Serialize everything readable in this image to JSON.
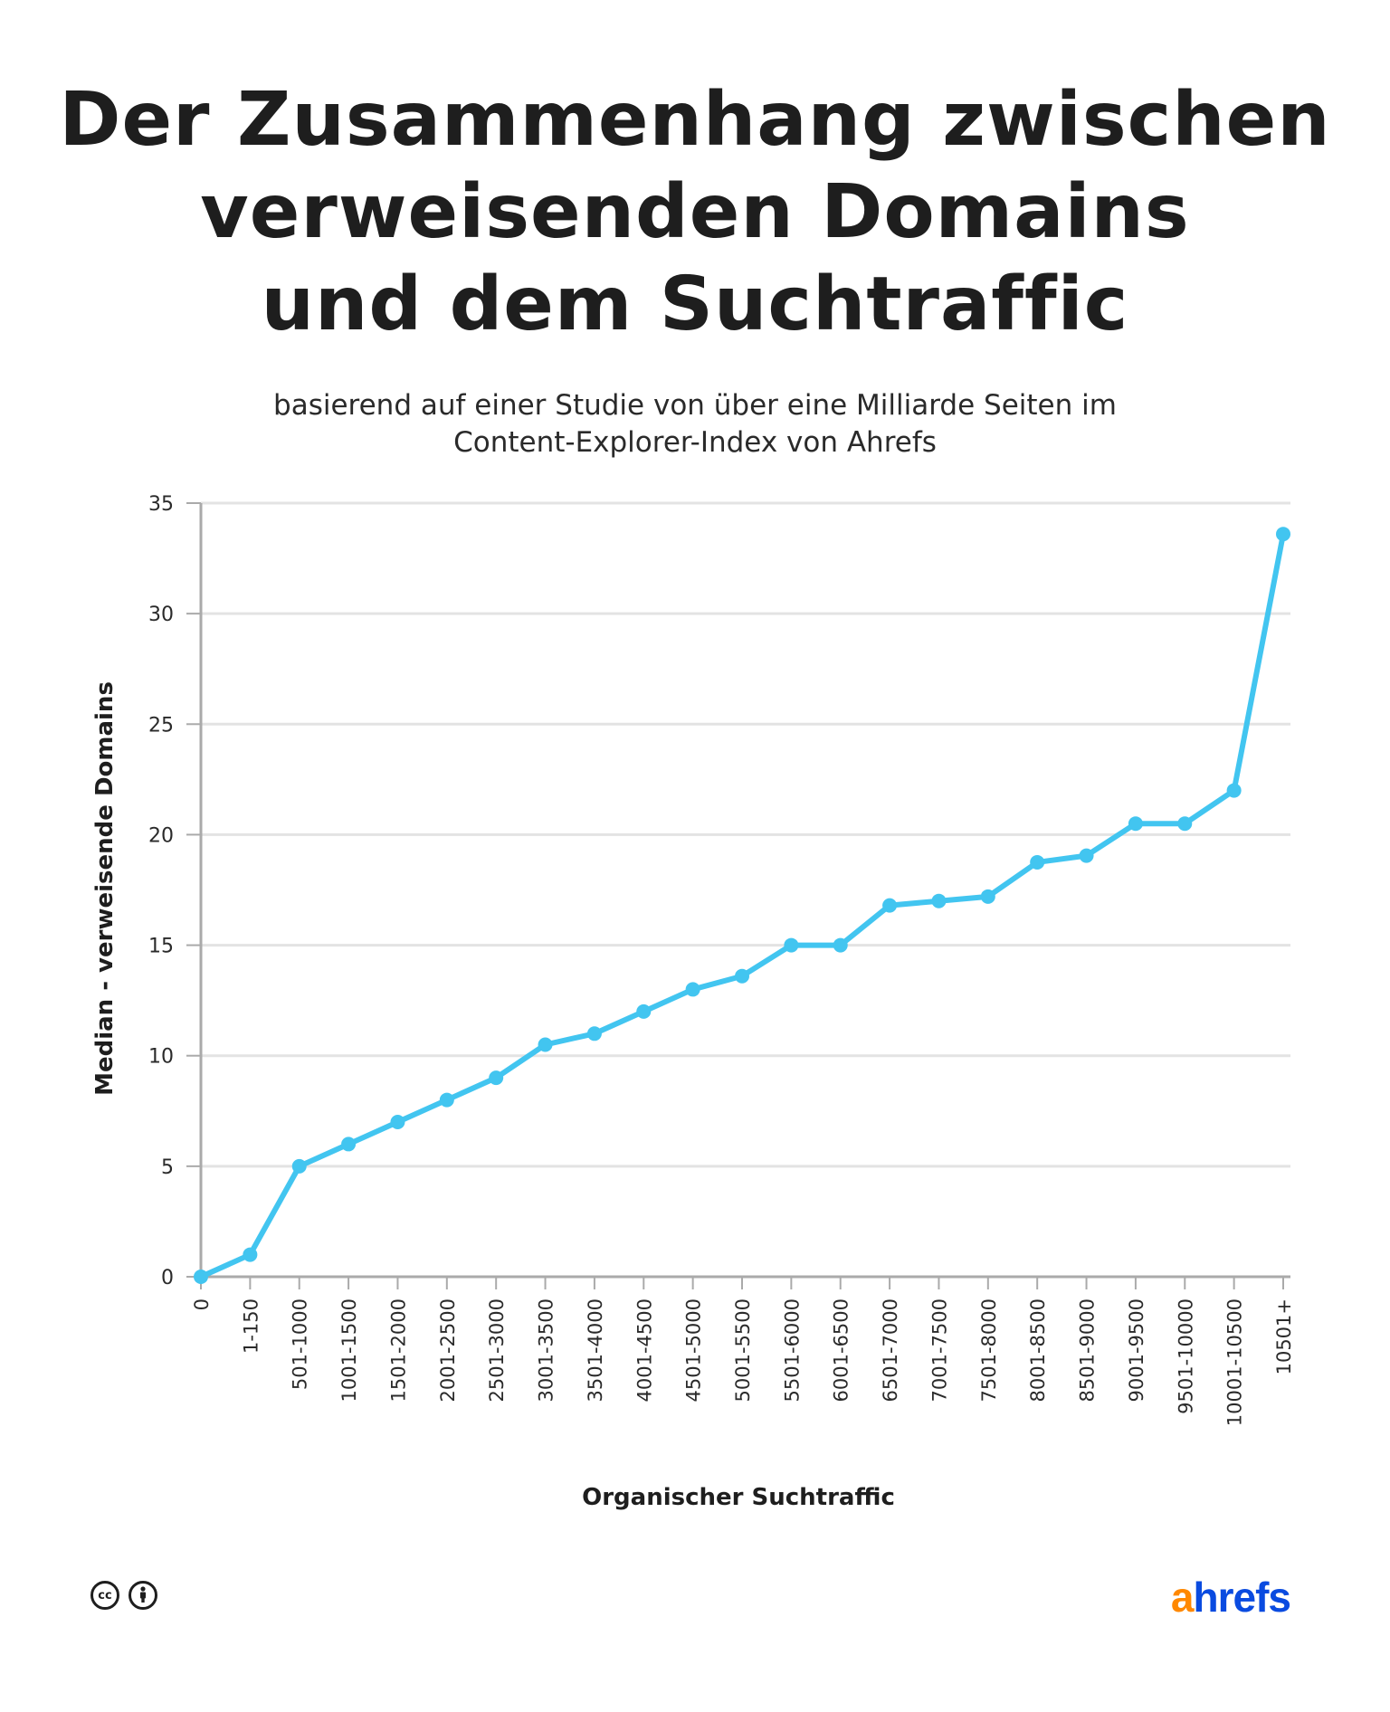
{
  "title_lines": [
    "Der Zusammenhang zwischen",
    "verweisenden Domains",
    "und dem Suchtraffic"
  ],
  "subtitle_lines": [
    "basierend auf einer Studie von über eine Milliarde Seiten im",
    "Content-Explorer-Index von Ahrefs"
  ],
  "chart_data": {
    "type": "line",
    "title": "Der Zusammenhang zwischen verweisenden Domains und dem Suchtraffic",
    "subtitle": "basierend auf einer Studie von über eine Milliarde Seiten im Content-Explorer-Index von Ahrefs",
    "xlabel": "Organischer Suchtraffic",
    "ylabel": "Median - verweisende Domains",
    "categories": [
      "0",
      "1-150",
      "501-1000",
      "1001-1500",
      "1501-2000",
      "2001-2500",
      "2501-3000",
      "3001-3500",
      "3501-4000",
      "4001-4500",
      "4501-5000",
      "5001-5500",
      "5501-6000",
      "6001-6500",
      "6501-7000",
      "7001-7500",
      "7501-8000",
      "8001-8500",
      "8501-9000",
      "9001-9500",
      "9501-10000",
      "10001-10500",
      "10501+"
    ],
    "values": [
      0,
      1,
      5,
      6,
      7,
      8,
      9,
      10.5,
      11,
      12,
      13,
      13.6,
      15,
      15,
      16.8,
      17,
      17.2,
      18.75,
      19.05,
      20.5,
      20.5,
      22,
      33.6
    ],
    "ylim": [
      0,
      35
    ],
    "yticks": [
      0,
      5,
      10,
      15,
      20,
      25,
      30,
      35
    ],
    "grid": true,
    "line_color": "#42c5f0"
  },
  "footer": {
    "license_icons": [
      "creative-commons-icon",
      "attribution-icon"
    ],
    "cc_text": "cc",
    "logo_a": "a",
    "logo_rest": "hrefs",
    "logo_colors": {
      "a": "#ff8800",
      "rest": "#0a4be0"
    }
  }
}
